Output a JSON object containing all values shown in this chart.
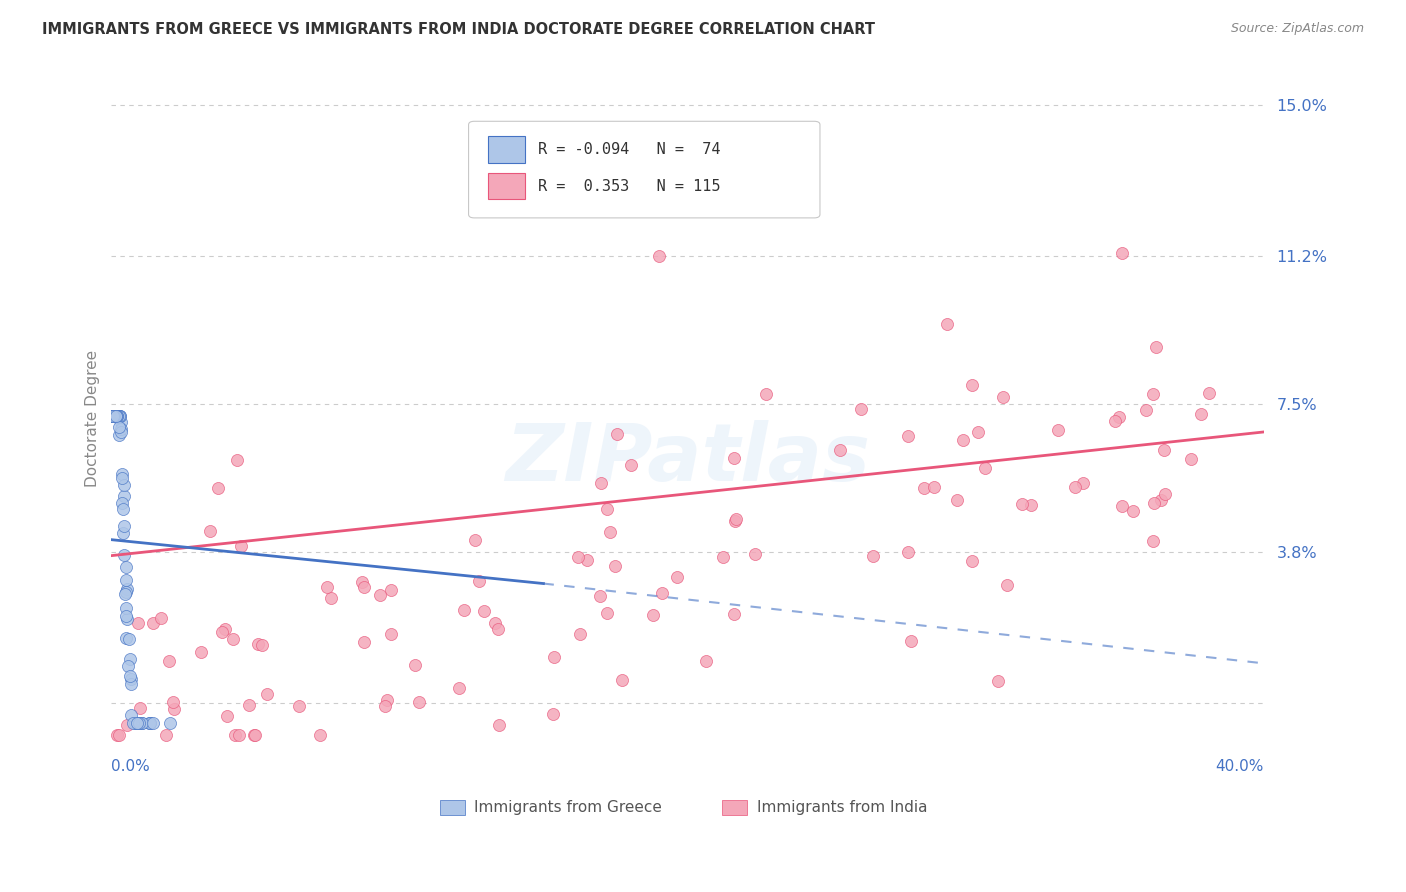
{
  "title": "IMMIGRANTS FROM GREECE VS IMMIGRANTS FROM INDIA DOCTORATE DEGREE CORRELATION CHART",
  "source": "Source: ZipAtlas.com",
  "ylabel": "Doctorate Degree",
  "y_ticks": [
    0.0,
    0.038,
    0.075,
    0.112,
    0.15
  ],
  "y_tick_labels": [
    "",
    "3.8%",
    "7.5%",
    "11.2%",
    "15.0%"
  ],
  "x_range": [
    0.0,
    0.4
  ],
  "y_range": [
    -0.015,
    0.158
  ],
  "legend_label1": "Immigrants from Greece",
  "legend_label2": "Immigrants from India",
  "R1": "-0.094",
  "N1": "74",
  "R2": "0.353",
  "N2": "115",
  "color_greece": "#aec6e8",
  "color_india": "#f4a7b9",
  "line_color_greece": "#4472c4",
  "line_color_india": "#e8567a",
  "background_color": "#ffffff",
  "grid_color": "#cccccc",
  "title_color": "#333333",
  "axis_tick_color": "#4472c4"
}
